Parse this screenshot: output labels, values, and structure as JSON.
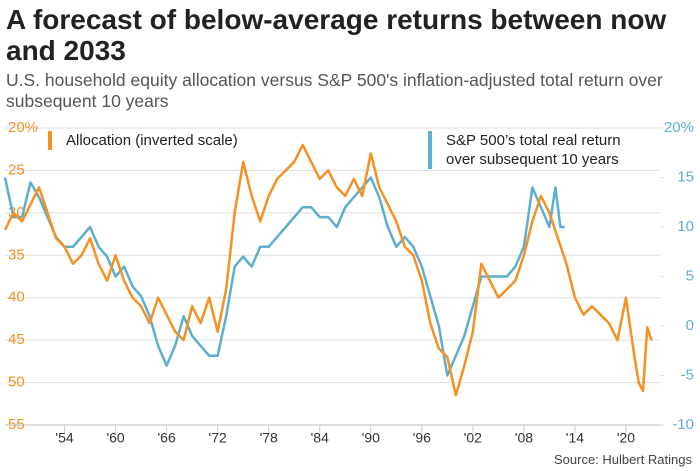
{
  "chart_data": {
    "type": "line",
    "title": "A forecast of below-average returns between now and 2033",
    "subtitle": "U.S. household equity allocation versus S&P 500's inflation-adjusted total return over subsequent 10 years",
    "source": "Source: Hulbert Ratings",
    "xlim": [
      1947,
      2024
    ],
    "xticks": [
      {
        "value": 1954,
        "label": "'54"
      },
      {
        "value": 1960,
        "label": "'60"
      },
      {
        "value": 1966,
        "label": "'66"
      },
      {
        "value": 1972,
        "label": "'72"
      },
      {
        "value": 1978,
        "label": "'78"
      },
      {
        "value": 1984,
        "label": "'84"
      },
      {
        "value": 1990,
        "label": "'90"
      },
      {
        "value": 1996,
        "label": "'96"
      },
      {
        "value": 2002,
        "label": "'02"
      },
      {
        "value": 2008,
        "label": "'08"
      },
      {
        "value": 2014,
        "label": "'14"
      },
      {
        "value": 2020,
        "label": "'20"
      }
    ],
    "ylim": [
      20,
      55
    ],
    "y_inverted": true,
    "yticks": [
      {
        "value": 20,
        "label": "20%"
      },
      25,
      30,
      35,
      40,
      45,
      50,
      55
    ],
    "y2lim": [
      -10,
      20
    ],
    "y2ticks": [
      {
        "value": 20,
        "label": "20%"
      },
      15,
      10,
      5,
      0,
      -5,
      -10
    ],
    "grid": true,
    "series": [
      {
        "name": "Allocation (inverted scale)",
        "color": "#f39123",
        "x": [
          1947,
          1948,
          1949,
          1950,
          1951,
          1952,
          1953,
          1954,
          1955,
          1956,
          1957,
          1958,
          1959,
          1960,
          1961,
          1962,
          1963,
          1964,
          1965,
          1966,
          1967,
          1968,
          1969,
          1970,
          1971,
          1972,
          1973,
          1974,
          1975,
          1976,
          1977,
          1978,
          1979,
          1980,
          1981,
          1982,
          1983,
          1984,
          1985,
          1986,
          1987,
          1988,
          1989,
          1990,
          1991,
          1992,
          1993,
          1994,
          1995,
          1996,
          1997,
          1998,
          1999,
          2000,
          2001,
          2002,
          2003,
          2004,
          2005,
          2006,
          2007,
          2008,
          2009,
          2010,
          2011,
          2012,
          2013,
          2014,
          2015,
          2016,
          2017,
          2018,
          2019,
          2020,
          2021,
          2021.5,
          2022,
          2022.5,
          2023
        ],
        "values": [
          32,
          30,
          31,
          29,
          27,
          30,
          33,
          34,
          36,
          35,
          33,
          36,
          38,
          35,
          38,
          40,
          41,
          43,
          40,
          42,
          44,
          45,
          41,
          43,
          40,
          44,
          39,
          30,
          24,
          28,
          31,
          28,
          26,
          25,
          24,
          22,
          24,
          26,
          25,
          27,
          28,
          26,
          28,
          23,
          27,
          29,
          31,
          34,
          35,
          38,
          43,
          46,
          47,
          51.5,
          48,
          44,
          36,
          38,
          40,
          39,
          38,
          35,
          31,
          28,
          30,
          33,
          36,
          40,
          42,
          41,
          42,
          43,
          45,
          40,
          47,
          50,
          51,
          43.5,
          45
        ]
      },
      {
        "name": "S&P 500’s total real return over subsequent 10 years",
        "color": "#5eaed0",
        "axis": "y2",
        "x": [
          1947,
          1948,
          1949,
          1950,
          1951,
          1952,
          1953,
          1954,
          1955,
          1956,
          1957,
          1958,
          1959,
          1960,
          1961,
          1962,
          1963,
          1964,
          1965,
          1966,
          1967,
          1968,
          1969,
          1970,
          1971,
          1972,
          1973,
          1974,
          1975,
          1976,
          1977,
          1978,
          1979,
          1980,
          1981,
          1982,
          1983,
          1984,
          1985,
          1986,
          1987,
          1988,
          1989,
          1990,
          1991,
          1992,
          1993,
          1994,
          1995,
          1996,
          1997,
          1998,
          1999,
          2000,
          2001,
          2002,
          2003,
          2004,
          2005,
          2006,
          2007,
          2008,
          2009,
          2010,
          2011,
          2011.7,
          2012.3,
          2012.8
        ],
        "values": [
          15,
          11,
          11,
          14.5,
          13,
          11,
          9,
          8,
          8,
          9,
          10,
          8,
          7,
          5,
          6,
          4,
          3,
          1,
          -2,
          -4,
          -2,
          1,
          -1,
          -2,
          -3,
          -3,
          1,
          6,
          7,
          6,
          8,
          8,
          9,
          10,
          11,
          12,
          12,
          11,
          11,
          10,
          12,
          13,
          14,
          15,
          13,
          10,
          8,
          9,
          8,
          6,
          3,
          0,
          -5,
          -3,
          -1,
          2,
          5,
          5,
          5,
          5,
          6,
          8,
          14,
          12,
          10,
          14,
          10,
          10
        ]
      }
    ]
  }
}
